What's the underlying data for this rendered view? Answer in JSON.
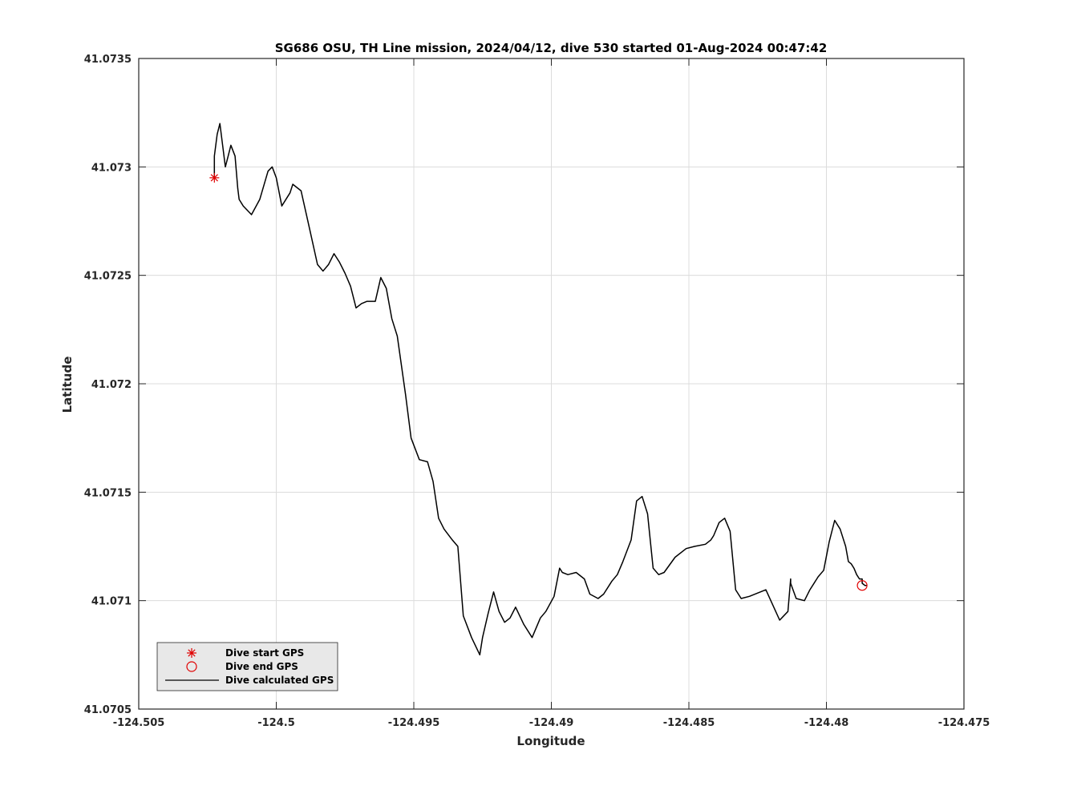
{
  "chart_data": {
    "type": "line",
    "title": "SG686 OSU, TH Line mission, 2024/04/12, dive 530 started 01-Aug-2024 00:47:42",
    "xlabel": "Longitude",
    "ylabel": "Latitude",
    "xlim": [
      -124.505,
      -124.475
    ],
    "ylim": [
      41.0705,
      41.0735
    ],
    "xticks": [
      -124.505,
      -124.5,
      -124.495,
      -124.49,
      -124.485,
      -124.48,
      -124.475
    ],
    "yticks": [
      41.0705,
      41.071,
      41.0715,
      41.072,
      41.0725,
      41.073,
      41.0735
    ],
    "xtick_labels": [
      "-124.505",
      "-124.5",
      "-124.495",
      "-124.49",
      "-124.485",
      "-124.48",
      "-124.475"
    ],
    "ytick_labels": [
      "41.0705",
      "41.071",
      "41.0715",
      "41.072",
      "41.0725",
      "41.073",
      "41.0735"
    ],
    "grid": true,
    "legend_position": "bottom-left",
    "series": [
      {
        "name": "Dive calculated GPS",
        "color": "#000000",
        "marker": "line",
        "x": [
          -124.50225,
          -124.50225,
          -124.50215,
          -124.50205,
          -124.50195,
          -124.50185,
          -124.50175,
          -124.50165,
          -124.5015,
          -124.5014,
          -124.50135,
          -124.5012,
          -124.5009,
          -124.5006,
          -124.5003,
          -124.50015,
          -124.5,
          -124.4998,
          -124.4996,
          -124.4995,
          -124.4994,
          -124.4991,
          -124.4988,
          -124.4985,
          -124.4983,
          -124.4981,
          -124.4979,
          -124.4977,
          -124.4975,
          -124.4973,
          -124.4971,
          -124.4969,
          -124.4967,
          -124.4964,
          -124.4962,
          -124.496,
          -124.4958,
          -124.4956,
          -124.4953,
          -124.4951,
          -124.4948,
          -124.4945,
          -124.4943,
          -124.4941,
          -124.4939,
          -124.4936,
          -124.4934,
          -124.4932,
          -124.4929,
          -124.4926,
          -124.4925,
          -124.4923,
          -124.4921,
          -124.4919,
          -124.4917,
          -124.4915,
          -124.4913,
          -124.491,
          -124.4907,
          -124.4904,
          -124.4902,
          -124.4899,
          -124.4897,
          -124.4896,
          -124.4894,
          -124.4891,
          -124.4888,
          -124.4886,
          -124.4883,
          -124.4881,
          -124.4878,
          -124.4876,
          -124.4874,
          -124.4871,
          -124.4869,
          -124.4867,
          -124.4865,
          -124.4863,
          -124.4861,
          -124.4859,
          -124.4855,
          -124.4851,
          -124.4848,
          -124.4844,
          -124.4842,
          -124.4841,
          -124.4839,
          -124.4837,
          -124.4835,
          -124.4833,
          -124.4831,
          -124.4828,
          -124.4822,
          -124.4817,
          -124.4814,
          -124.4813,
          -124.4813,
          -124.4811,
          -124.4808,
          -124.4806,
          -124.4803,
          -124.4801,
          -124.4799,
          -124.4797,
          -124.4795,
          -124.4793,
          -124.4792,
          -124.4791,
          -124.479,
          -124.4789,
          -124.4788,
          -124.4787,
          -124.4787,
          -124.4786,
          -124.4786,
          -124.47855
        ],
        "y": [
          41.07295,
          41.07305,
          41.07315,
          41.0732,
          41.0731,
          41.073,
          41.07305,
          41.0731,
          41.07305,
          41.0729,
          41.07285,
          41.07282,
          41.07278,
          41.07285,
          41.07298,
          41.073,
          41.07295,
          41.07282,
          41.07286,
          41.07288,
          41.07292,
          41.07289,
          41.07272,
          41.07255,
          41.07252,
          41.07255,
          41.0726,
          41.07256,
          41.07251,
          41.07245,
          41.07235,
          41.07237,
          41.07238,
          41.07238,
          41.07249,
          41.07244,
          41.0723,
          41.07222,
          41.07195,
          41.07175,
          41.07165,
          41.07164,
          41.07155,
          41.07138,
          41.07133,
          41.07128,
          41.07125,
          41.07093,
          41.07083,
          41.07075,
          41.07083,
          41.07094,
          41.07104,
          41.07095,
          41.0709,
          41.07092,
          41.07097,
          41.07089,
          41.07083,
          41.07092,
          41.07095,
          41.07102,
          41.07115,
          41.07113,
          41.07112,
          41.07113,
          41.0711,
          41.07103,
          41.07101,
          41.07103,
          41.07109,
          41.07112,
          41.07118,
          41.07128,
          41.07146,
          41.07148,
          41.0714,
          41.07115,
          41.07112,
          41.07113,
          41.0712,
          41.07124,
          41.07125,
          41.07126,
          41.07128,
          41.0713,
          41.07136,
          41.07138,
          41.07132,
          41.07105,
          41.07101,
          41.07102,
          41.07105,
          41.07091,
          41.07095,
          41.0711,
          41.07108,
          41.07101,
          41.071,
          41.07105,
          41.07111,
          41.07114,
          41.07127,
          41.07137,
          41.07133,
          41.07125,
          41.07118,
          41.07117,
          41.07115,
          41.07112,
          41.0711,
          41.0711,
          41.07108,
          41.07107,
          41.07107,
          41.07107
        ]
      },
      {
        "name": "Dive start GPS",
        "color": "#e00000",
        "marker": "asterisk",
        "x": [
          -124.50225
        ],
        "y": [
          41.07295
        ]
      },
      {
        "name": "Dive end GPS",
        "color": "#e00000",
        "marker": "circle",
        "x": [
          -124.4787
        ],
        "y": [
          41.07107
        ]
      }
    ]
  }
}
